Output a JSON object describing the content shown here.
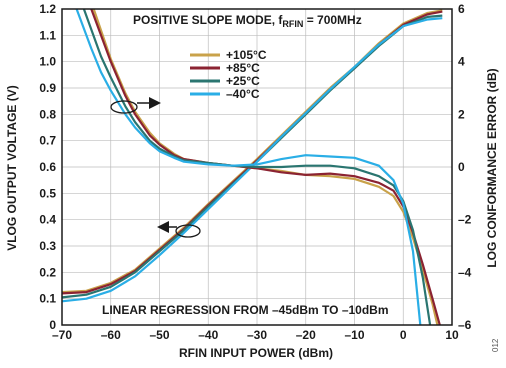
{
  "chart_data": {
    "type": "line",
    "title": "POSITIVE SLOPE MODE, f",
    "title_sub": "RFIN",
    "title_tail": " = 700MHz",
    "xlabel": "RFIN INPUT POWER (dBm)",
    "ylabel_left": "VLOG OUTPUT VOLTAGE (V)",
    "ylabel_right": "LOG CONFORMANCE ERROR (dB)",
    "xlim": [
      -70,
      10
    ],
    "ylim_left": [
      0,
      1.2
    ],
    "ylim_right": [
      -6,
      6
    ],
    "x_ticks": [
      -70,
      -60,
      -50,
      -40,
      -30,
      -20,
      -10,
      0,
      10
    ],
    "x_tick_labels": [
      "–70",
      "–60",
      "–50",
      "–40",
      "–30",
      "–20",
      "–10",
      "0",
      "10"
    ],
    "y_left_ticks": [
      0,
      0.1,
      0.2,
      0.3,
      0.4,
      0.5,
      0.6,
      0.7,
      0.8,
      0.9,
      1.0,
      1.1,
      1.2
    ],
    "y_left_tick_labels": [
      "0",
      "0.1",
      "0.2",
      "0.3",
      "0.4",
      "0.5",
      "0.6",
      "0.7",
      "0.8",
      "0.9",
      "1.0",
      "1.1",
      "1.2"
    ],
    "y_right_ticks": [
      -6,
      -4,
      -2,
      0,
      2,
      4,
      6
    ],
    "y_right_tick_labels": [
      "–6",
      "–4",
      "–2",
      "0",
      "2",
      "4",
      "6"
    ],
    "grid": true,
    "legend_position": "top-center",
    "annotation": "LINEAR REGRESSION FROM –45dBm TO –10dBm",
    "figure_number": "012",
    "series": [
      {
        "name": "+105°C",
        "color": "#c9a24a",
        "vlog": {
          "x": [
            -70,
            -65,
            -60,
            -55,
            -50,
            -45,
            -40,
            -35,
            -30,
            -25,
            -20,
            -15,
            -10,
            -5,
            0,
            5,
            8
          ],
          "y": [
            0.125,
            0.13,
            0.16,
            0.21,
            0.29,
            0.37,
            0.46,
            0.545,
            0.63,
            0.72,
            0.81,
            0.9,
            0.98,
            1.07,
            1.145,
            1.185,
            1.195
          ]
        },
        "error": {
          "x": [
            -63.5,
            -60,
            -57,
            -55,
            -52,
            -50,
            -47,
            -45,
            -40,
            -35,
            -30,
            -25,
            -20,
            -15,
            -10,
            -5,
            -2,
            0,
            2,
            4,
            6,
            7
          ],
          "y": [
            6.0,
            4.1,
            2.8,
            2.1,
            1.3,
            0.9,
            0.5,
            0.3,
            0.15,
            0.05,
            -0.05,
            -0.15,
            -0.3,
            -0.35,
            -0.45,
            -0.75,
            -1.1,
            -1.7,
            -2.7,
            -3.9,
            -5.2,
            -6.0
          ]
        }
      },
      {
        "name": "+85°C",
        "color": "#8b2332",
        "vlog": {
          "x": [
            -70,
            -65,
            -60,
            -55,
            -50,
            -45,
            -40,
            -35,
            -30,
            -25,
            -20,
            -15,
            -10,
            -5,
            0,
            5,
            8
          ],
          "y": [
            0.12,
            0.125,
            0.155,
            0.205,
            0.285,
            0.365,
            0.455,
            0.54,
            0.625,
            0.715,
            0.805,
            0.895,
            0.975,
            1.065,
            1.14,
            1.18,
            1.19
          ]
        },
        "error": {
          "x": [
            -64,
            -60,
            -57,
            -55,
            -52,
            -50,
            -47,
            -45,
            -40,
            -35,
            -30,
            -25,
            -20,
            -15,
            -10,
            -5,
            -2,
            0,
            2,
            4,
            6,
            7.5
          ],
          "y": [
            6.0,
            4.0,
            2.7,
            2.0,
            1.2,
            0.85,
            0.45,
            0.3,
            0.15,
            0.05,
            -0.05,
            -0.2,
            -0.3,
            -0.25,
            -0.35,
            -0.6,
            -0.9,
            -1.5,
            -2.5,
            -3.7,
            -5.0,
            -6.0
          ]
        }
      },
      {
        "name": "+25°C",
        "color": "#2a7570",
        "vlog": {
          "x": [
            -70,
            -65,
            -60,
            -55,
            -50,
            -45,
            -40,
            -35,
            -30,
            -25,
            -20,
            -15,
            -10,
            -5,
            0,
            5,
            8
          ],
          "y": [
            0.105,
            0.115,
            0.145,
            0.2,
            0.28,
            0.36,
            0.45,
            0.535,
            0.62,
            0.71,
            0.8,
            0.89,
            0.975,
            1.06,
            1.135,
            1.17,
            1.175
          ]
        },
        "error": {
          "x": [
            -65.5,
            -62,
            -60,
            -57,
            -55,
            -52,
            -50,
            -47,
            -45,
            -40,
            -35,
            -30,
            -25,
            -20,
            -15,
            -10,
            -5,
            -2,
            0,
            2,
            4,
            5.5
          ],
          "y": [
            6.0,
            4.2,
            3.4,
            2.3,
            1.7,
            1.0,
            0.7,
            0.4,
            0.25,
            0.15,
            0.05,
            0.0,
            0.0,
            0.05,
            0.05,
            -0.05,
            -0.35,
            -0.7,
            -1.3,
            -2.4,
            -4.2,
            -6.0
          ]
        }
      },
      {
        "name": "–40°C",
        "color": "#2aaee6",
        "vlog": {
          "x": [
            -70,
            -65,
            -60,
            -55,
            -50,
            -45,
            -40,
            -35,
            -30,
            -25,
            -20,
            -15,
            -10,
            -5,
            0,
            5,
            8
          ],
          "y": [
            0.09,
            0.1,
            0.13,
            0.185,
            0.265,
            0.35,
            0.44,
            0.53,
            0.62,
            0.715,
            0.805,
            0.895,
            0.98,
            1.065,
            1.135,
            1.16,
            1.165
          ]
        },
        "error": {
          "x": [
            -67,
            -64,
            -62,
            -60,
            -57,
            -55,
            -52,
            -50,
            -47,
            -45,
            -40,
            -35,
            -30,
            -25,
            -20,
            -15,
            -10,
            -5,
            -2,
            0,
            2,
            3.5
          ],
          "y": [
            6.0,
            4.5,
            3.6,
            2.9,
            2.0,
            1.5,
            0.9,
            0.6,
            0.35,
            0.2,
            0.1,
            0.05,
            0.1,
            0.3,
            0.45,
            0.4,
            0.35,
            0.05,
            -0.5,
            -1.4,
            -3.2,
            -6.0
          ]
        }
      }
    ]
  }
}
